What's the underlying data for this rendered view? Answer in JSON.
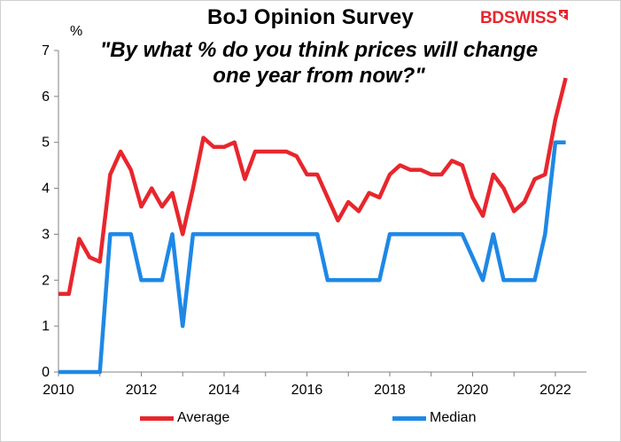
{
  "header": {
    "title": "BoJ Opinion Survey",
    "subtitle": "\"By what % do you think prices will change one year from now?\"",
    "logo_text": "BDSWISS"
  },
  "colors": {
    "average": "#e8262d",
    "median": "#1e88e5",
    "axis": "#808080",
    "logo": "#e8262d"
  },
  "chart_data": {
    "type": "line",
    "yunit": "%",
    "xlim": [
      2010,
      2022.75
    ],
    "ylim": [
      0,
      7
    ],
    "xticks": [
      2010,
      2012,
      2014,
      2016,
      2018,
      2020,
      2022
    ],
    "yticks": [
      0,
      1,
      2,
      3,
      4,
      5,
      6,
      7
    ],
    "grid": false,
    "legend": "bottom",
    "series": [
      {
        "name": "Average",
        "color": "#e8262d",
        "x": [
          2010.0,
          2010.25,
          2010.5,
          2010.75,
          2011.0,
          2011.25,
          2011.5,
          2011.75,
          2012.0,
          2012.25,
          2012.5,
          2012.75,
          2013.0,
          2013.25,
          2013.5,
          2013.75,
          2014.0,
          2014.25,
          2014.5,
          2014.75,
          2015.0,
          2015.25,
          2015.5,
          2015.75,
          2016.0,
          2016.25,
          2016.5,
          2016.75,
          2017.0,
          2017.25,
          2017.5,
          2017.75,
          2018.0,
          2018.25,
          2018.5,
          2018.75,
          2019.0,
          2019.25,
          2019.5,
          2019.75,
          2020.0,
          2020.25,
          2020.5,
          2020.75,
          2021.0,
          2021.25,
          2021.5,
          2021.75,
          2022.0,
          2022.25
        ],
        "y": [
          1.7,
          1.7,
          2.9,
          2.5,
          2.4,
          4.3,
          4.8,
          4.4,
          3.6,
          4.0,
          3.6,
          3.9,
          3.0,
          4.0,
          5.1,
          4.9,
          4.9,
          5.0,
          4.2,
          4.8,
          4.8,
          4.8,
          4.8,
          4.7,
          4.3,
          4.3,
          3.8,
          3.3,
          3.7,
          3.5,
          3.9,
          3.8,
          4.3,
          4.5,
          4.4,
          4.4,
          4.3,
          4.3,
          4.6,
          4.5,
          3.8,
          3.4,
          4.3,
          4.0,
          3.5,
          3.7,
          4.2,
          4.3,
          5.5,
          6.4
        ]
      },
      {
        "name": "Median",
        "color": "#1e88e5",
        "x": [
          2010.0,
          2010.25,
          2010.5,
          2010.75,
          2011.0,
          2011.25,
          2011.5,
          2011.75,
          2012.0,
          2012.25,
          2012.5,
          2012.75,
          2013.0,
          2013.25,
          2013.5,
          2013.75,
          2014.0,
          2014.25,
          2014.5,
          2014.75,
          2015.0,
          2015.25,
          2015.5,
          2015.75,
          2016.0,
          2016.25,
          2016.5,
          2016.75,
          2017.0,
          2017.25,
          2017.5,
          2017.75,
          2018.0,
          2018.25,
          2018.5,
          2018.75,
          2019.0,
          2019.25,
          2019.5,
          2019.75,
          2020.0,
          2020.25,
          2020.5,
          2020.75,
          2021.0,
          2021.25,
          2021.5,
          2021.75,
          2022.0,
          2022.25
        ],
        "y": [
          0,
          0,
          0,
          0,
          0,
          3,
          3,
          3,
          2,
          2,
          2,
          3,
          1,
          3,
          3,
          3,
          3,
          3,
          3,
          3,
          3,
          3,
          3,
          3,
          3,
          3,
          2,
          2,
          2,
          2,
          2,
          2,
          3,
          3,
          3,
          3,
          3,
          3,
          3,
          3,
          2.5,
          2,
          3,
          2,
          2,
          2,
          2,
          3,
          5,
          5
        ]
      }
    ]
  }
}
